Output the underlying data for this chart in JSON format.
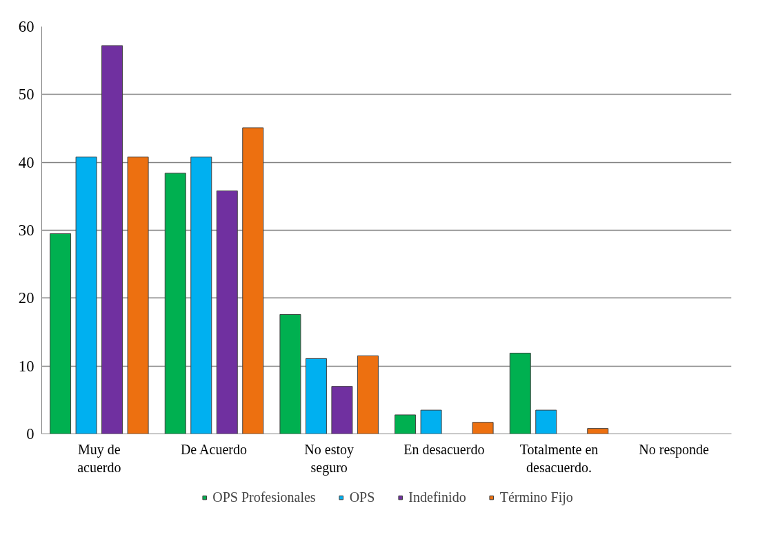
{
  "chart_data": {
    "type": "bar",
    "categories": [
      "Muy de acuerdo",
      "De Acuerdo",
      "No estoy seguro",
      "En desacuerdo",
      "Totalmente en desacuerdo.",
      "No responde"
    ],
    "series": [
      {
        "name": "OPS Profesionales",
        "color": "#00b050",
        "values": [
          29.5,
          38.4,
          17.6,
          2.8,
          11.9,
          0
        ]
      },
      {
        "name": "OPS",
        "color": "#00b0f0",
        "values": [
          40.8,
          40.8,
          11.1,
          3.5,
          3.5,
          0
        ]
      },
      {
        "name": "Indefinido",
        "color": "#7030a0",
        "values": [
          57.2,
          35.8,
          7.0,
          0,
          0,
          0
        ]
      },
      {
        "name": "Término Fijo",
        "color": "#ed7010",
        "values": [
          40.8,
          45.1,
          11.5,
          1.7,
          0.8,
          0
        ]
      }
    ],
    "ylim": [
      0,
      60
    ],
    "yticks": [
      0,
      10,
      20,
      30,
      40,
      50,
      60
    ],
    "grid": "y",
    "legend": "bottom"
  }
}
